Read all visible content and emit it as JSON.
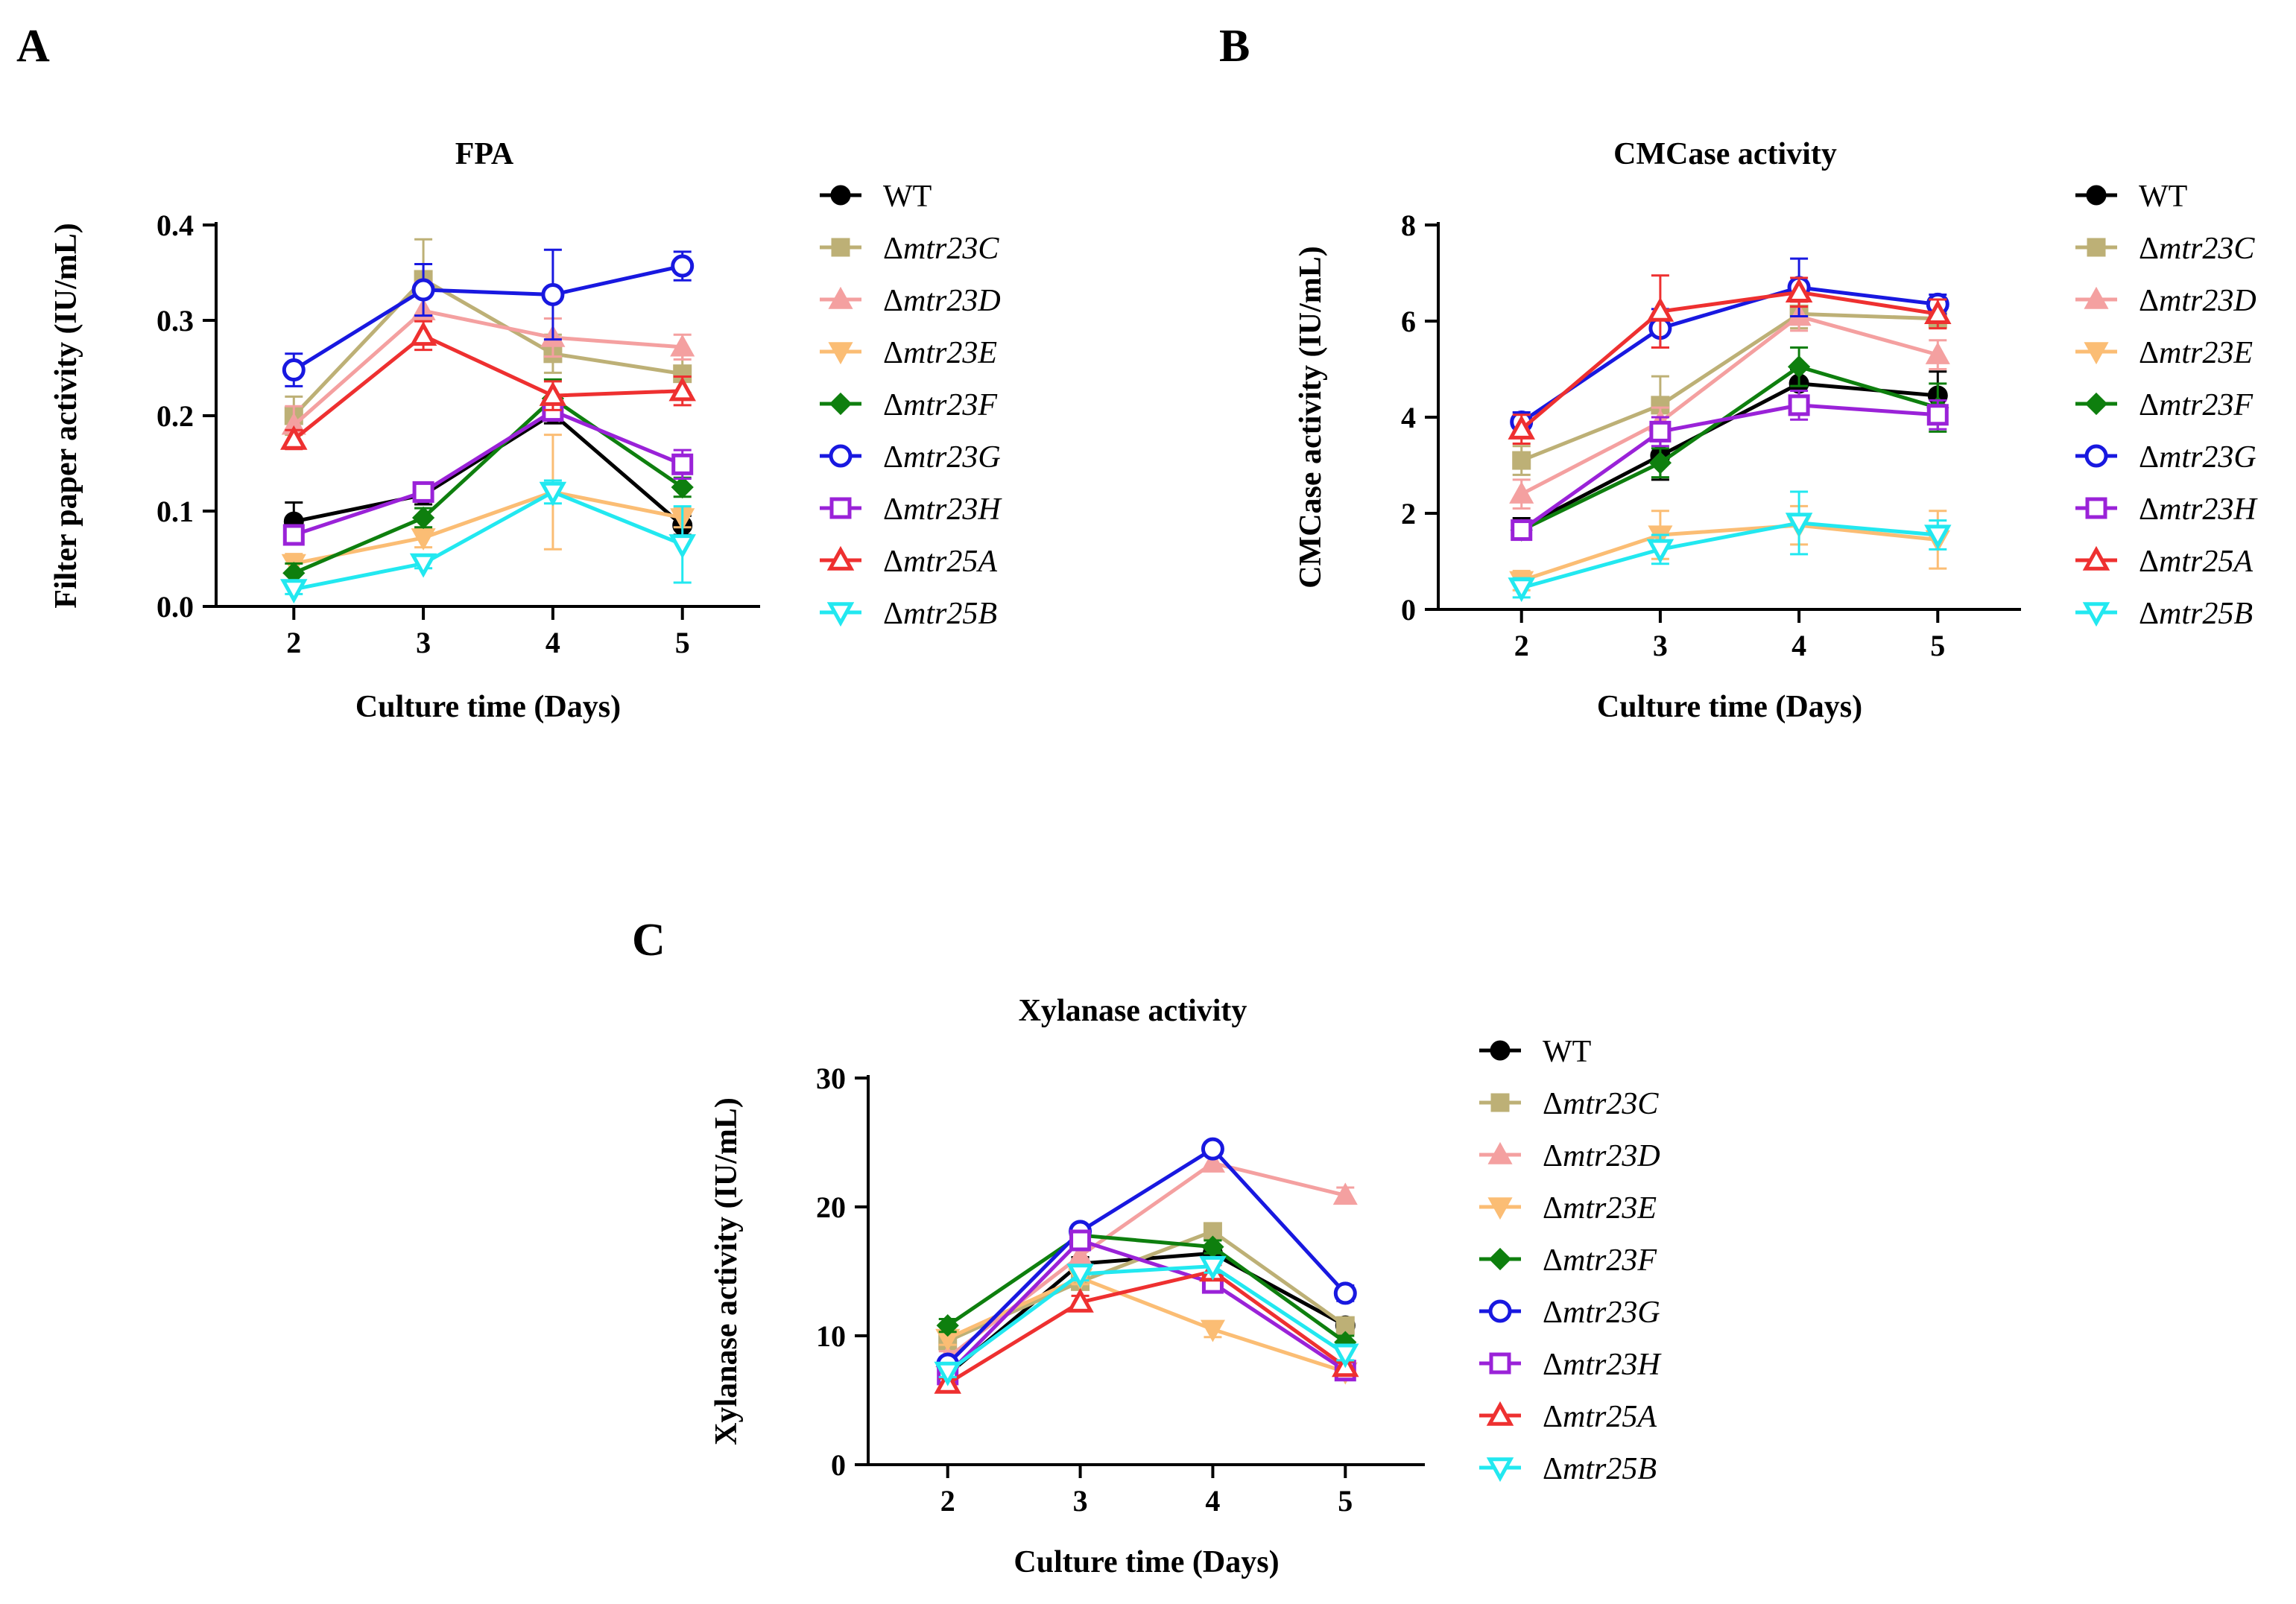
{
  "figure": {
    "series_styles": [
      {
        "name": "WT",
        "color": "#000000",
        "marker": "circle",
        "filled": true
      },
      {
        "name": "Δmtr23C",
        "prefix": "Δ",
        "italic_part": "mtr23C",
        "color": "#bdb076",
        "marker": "square",
        "filled": true
      },
      {
        "name": "Δmtr23D",
        "prefix": "Δ",
        "italic_part": "mtr23D",
        "color": "#f4a0a0",
        "marker": "triangle-up",
        "filled": true
      },
      {
        "name": "Δmtr23E",
        "prefix": "Δ",
        "italic_part": "mtr23E",
        "color": "#fbbd74",
        "marker": "triangle-down",
        "filled": true
      },
      {
        "name": "Δmtr23F",
        "prefix": "Δ",
        "italic_part": "mtr23F",
        "color": "#0e7f0e",
        "marker": "diamond",
        "filled": true
      },
      {
        "name": "Δmtr23G",
        "prefix": "Δ",
        "italic_part": "mtr23G",
        "color": "#1818e0",
        "marker": "circle",
        "filled": false
      },
      {
        "name": "Δmtr23H",
        "prefix": "Δ",
        "italic_part": "mtr23H",
        "color": "#9a22d8",
        "marker": "square",
        "filled": false
      },
      {
        "name": "Δmtr25A",
        "prefix": "Δ",
        "italic_part": "mtr25A",
        "color": "#ee3030",
        "marker": "triangle-up",
        "filled": false
      },
      {
        "name": "Δmtr25B",
        "prefix": "Δ",
        "italic_part": "mtr25B",
        "color": "#22e8f0",
        "marker": "triangle-down",
        "filled": false
      }
    ]
  },
  "chart_data": [
    {
      "panel": "A",
      "type": "line",
      "title": "FPA",
      "xlabel": "Culture time (Days)",
      "ylabel": "Filter paper activity (IU/mL)",
      "x": [
        2,
        3,
        4,
        5
      ],
      "xlim": [
        1.4,
        5.6
      ],
      "ylim": [
        0,
        0.4
      ],
      "yticks": [
        "0.0",
        "0.1",
        "0.2",
        "0.3",
        "0.4"
      ],
      "ytick_values": [
        0,
        0.1,
        0.2,
        0.3,
        0.4
      ],
      "legend_position": "right",
      "series": [
        {
          "name": "WT",
          "values": [
            0.089,
            0.117,
            0.202,
            0.085
          ],
          "errors": [
            0.02,
            0.01,
            0.01,
            0.01
          ]
        },
        {
          "name": "Δmtr23C",
          "values": [
            0.2,
            0.343,
            0.265,
            0.244
          ],
          "errors": [
            0.02,
            0.042,
            0.02,
            0.02
          ]
        },
        {
          "name": "Δmtr23D",
          "values": [
            0.19,
            0.31,
            0.282,
            0.272
          ],
          "errors": [
            0.02,
            0.03,
            0.02,
            0.013
          ]
        },
        {
          "name": "Δmtr23E",
          "values": [
            0.045,
            0.072,
            0.12,
            0.093
          ],
          "errors": [
            0.01,
            0.01,
            0.06,
            0.01
          ]
        },
        {
          "name": "Δmtr23F",
          "values": [
            0.035,
            0.093,
            0.218,
            0.125
          ],
          "errors": [
            0.01,
            0.01,
            0.02,
            0.01
          ]
        },
        {
          "name": "Δmtr23G",
          "values": [
            0.248,
            0.332,
            0.327,
            0.357
          ],
          "errors": [
            0.017,
            0.027,
            0.047,
            0.015
          ]
        },
        {
          "name": "Δmtr23H",
          "values": [
            0.075,
            0.12,
            0.205,
            0.149
          ],
          "errors": [
            0.01,
            0.01,
            0.01,
            0.015
          ]
        },
        {
          "name": "Δmtr25A",
          "values": [
            0.175,
            0.284,
            0.221,
            0.226
          ],
          "errors": [
            0.01,
            0.015,
            0.015,
            0.015
          ]
        },
        {
          "name": "Δmtr25B",
          "values": [
            0.018,
            0.045,
            0.12,
            0.065
          ],
          "errors": [
            0.005,
            0.005,
            0.012,
            0.04
          ]
        }
      ]
    },
    {
      "panel": "B",
      "type": "line",
      "title": "CMCase activity",
      "xlabel": "Culture time (Days)",
      "ylabel": "CMCase activity (IU/mL)",
      "x": [
        2,
        3,
        4,
        5
      ],
      "xlim": [
        1.4,
        5.6
      ],
      "ylim": [
        0,
        8
      ],
      "yticks": [
        "0",
        "2",
        "4",
        "6",
        "8"
      ],
      "ytick_values": [
        0,
        2,
        4,
        6,
        8
      ],
      "legend_position": "right",
      "series": [
        {
          "name": "WT",
          "values": [
            1.7,
            3.2,
            4.7,
            4.45
          ],
          "errors": [
            0.2,
            0.5,
            0.3,
            0.5
          ]
        },
        {
          "name": "Δmtr23C",
          "values": [
            3.1,
            4.25,
            6.15,
            6.05
          ],
          "errors": [
            0.3,
            0.6,
            0.3,
            0.2
          ]
        },
        {
          "name": "Δmtr23D",
          "values": [
            2.4,
            3.9,
            6.1,
            5.3
          ],
          "errors": [
            0.3,
            0.3,
            0.3,
            0.3
          ]
        },
        {
          "name": "Δmtr23E",
          "values": [
            0.6,
            1.55,
            1.75,
            1.45
          ],
          "errors": [
            0.2,
            0.5,
            0.4,
            0.6
          ]
        },
        {
          "name": "Δmtr23F",
          "values": [
            1.65,
            3.05,
            5.05,
            4.2
          ],
          "errors": [
            0.2,
            0.3,
            0.4,
            0.5
          ]
        },
        {
          "name": "Δmtr23G",
          "values": [
            3.9,
            5.85,
            6.7,
            6.35
          ],
          "errors": [
            0.2,
            0.4,
            0.6,
            0.2
          ]
        },
        {
          "name": "Δmtr23H",
          "values": [
            1.65,
            3.7,
            4.25,
            4.05
          ],
          "errors": [
            0.2,
            0.3,
            0.3,
            0.3
          ]
        },
        {
          "name": "Δmtr25A",
          "values": [
            3.75,
            6.2,
            6.6,
            6.15
          ],
          "errors": [
            0.3,
            0.75,
            0.3,
            0.3
          ]
        },
        {
          "name": "Δmtr25B",
          "values": [
            0.45,
            1.25,
            1.8,
            1.55
          ],
          "errors": [
            0.2,
            0.3,
            0.65,
            0.3
          ]
        }
      ]
    },
    {
      "panel": "C",
      "type": "line",
      "title": "Xylanase activity",
      "xlabel": "Culture time (Days)",
      "ylabel": "Xylanase activity (IU/mL)",
      "x": [
        2,
        3,
        4,
        5
      ],
      "xlim": [
        1.4,
        5.6
      ],
      "ylim": [
        0,
        30
      ],
      "yticks": [
        "0",
        "10",
        "20",
        "30"
      ],
      "ytick_values": [
        0,
        10,
        20,
        30
      ],
      "legend_position": "right",
      "series": [
        {
          "name": "WT",
          "values": [
            7.0,
            15.6,
            16.4,
            10.8
          ],
          "errors": [
            0.5,
            0.5,
            0.5,
            0.5
          ]
        },
        {
          "name": "Δmtr23C",
          "values": [
            9.6,
            14.2,
            18.1,
            10.8
          ],
          "errors": [
            0.5,
            0.5,
            0.5,
            0.5
          ]
        },
        {
          "name": "Δmtr23D",
          "values": [
            8.3,
            16.2,
            23.4,
            20.9
          ],
          "errors": [
            0.5,
            0.5,
            0.6,
            0.6
          ]
        },
        {
          "name": "Δmtr23E",
          "values": [
            9.8,
            14.5,
            10.5,
            7.2
          ],
          "errors": [
            0.5,
            0.5,
            0.6,
            0.4
          ]
        },
        {
          "name": "Δmtr23F",
          "values": [
            10.8,
            17.8,
            16.9,
            9.5
          ],
          "errors": [
            0.5,
            0.5,
            0.5,
            0.5
          ]
        },
        {
          "name": "Δmtr23G",
          "values": [
            7.8,
            18.1,
            24.5,
            13.3
          ],
          "errors": [
            0.5,
            0.5,
            0.5,
            0.6
          ]
        },
        {
          "name": "Δmtr23H",
          "values": [
            7.0,
            17.4,
            14.1,
            7.3
          ],
          "errors": [
            0.5,
            0.5,
            0.5,
            0.4
          ]
        },
        {
          "name": "Δmtr25A",
          "values": [
            6.3,
            12.6,
            15.0,
            7.6
          ],
          "errors": [
            0.4,
            0.5,
            0.5,
            0.4
          ]
        },
        {
          "name": "Δmtr25B",
          "values": [
            7.2,
            14.8,
            15.4,
            8.6
          ],
          "errors": [
            0.4,
            0.5,
            0.5,
            0.5
          ]
        }
      ]
    }
  ]
}
